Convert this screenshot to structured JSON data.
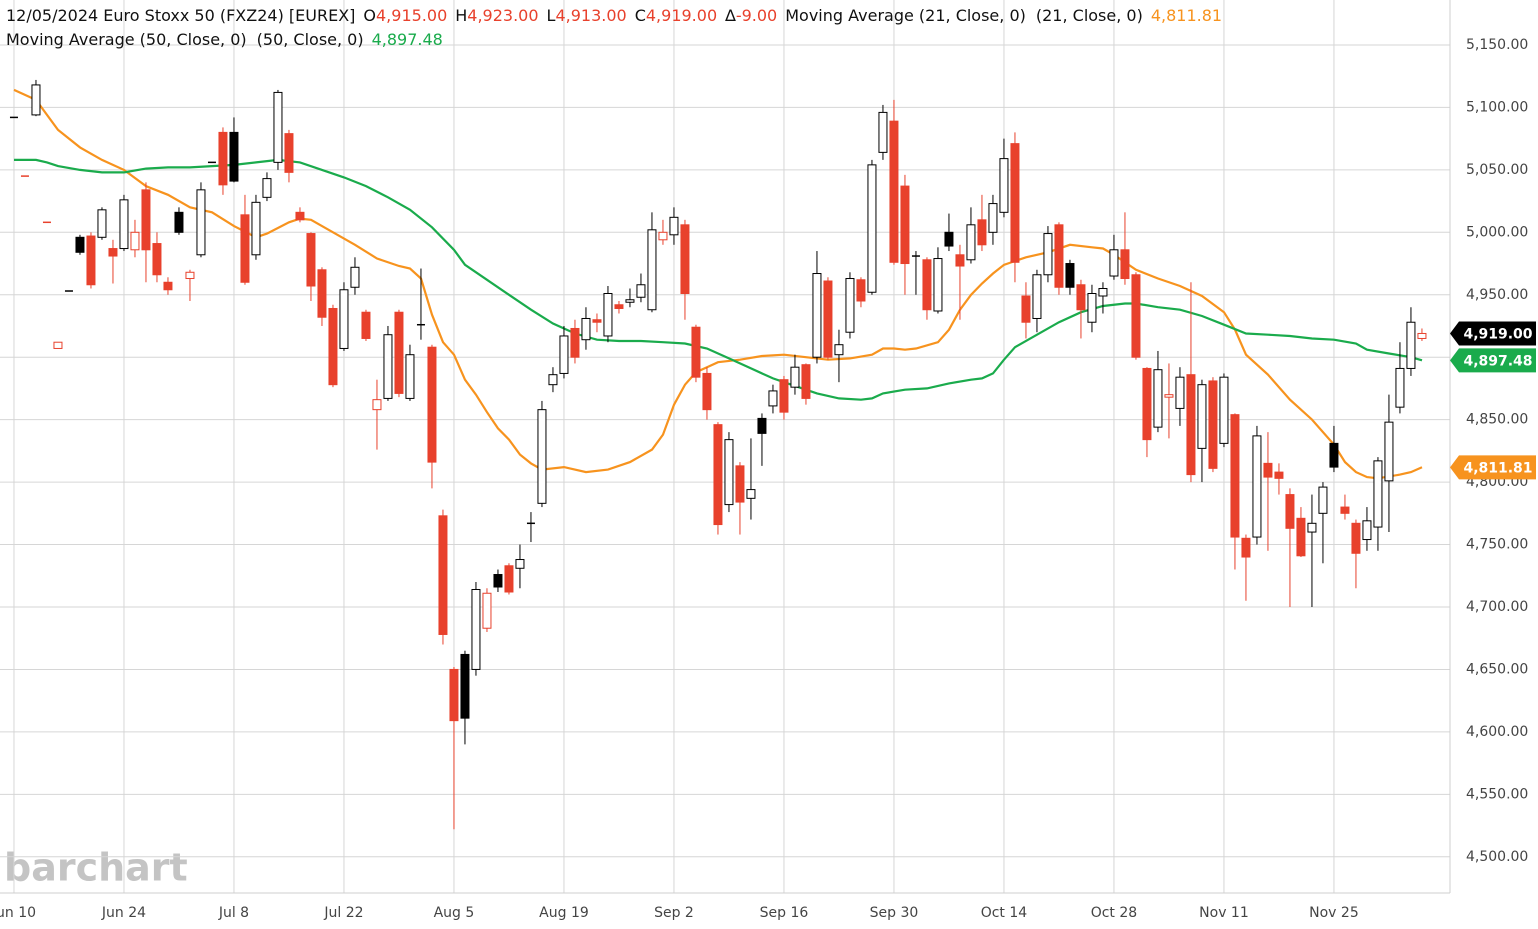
{
  "chart_data": {
    "type": "candlestick",
    "title": "12/05/2024 Euro Stoxx 50 (FXZ24) [EUREX]",
    "quote": [
      {
        "key": "O",
        "text": "4,915.00"
      },
      {
        "key": "H",
        "text": "4,923.00"
      },
      {
        "key": "L",
        "text": "4,913.00"
      },
      {
        "key": "C",
        "text": "4,919.00"
      },
      {
        "key": "∆",
        "text": "-9.00"
      }
    ],
    "watermark": "barchart",
    "up_color": "#000000",
    "down_color": "#e8412c",
    "x": [
      0,
      1,
      2,
      3,
      4,
      5,
      6,
      7,
      8,
      9,
      10,
      11,
      12,
      13,
      14,
      15,
      16,
      17,
      18,
      19,
      20,
      21,
      22,
      23,
      24,
      25,
      26,
      27,
      28,
      29,
      30,
      31,
      32,
      33,
      34,
      35,
      36,
      37,
      38,
      39,
      40,
      41,
      42,
      43,
      44,
      45,
      46,
      47,
      48,
      49,
      50,
      51,
      52,
      53,
      54,
      55,
      56,
      57,
      58,
      59,
      60,
      61,
      62,
      63,
      64,
      65,
      66,
      67,
      68,
      69,
      70,
      71,
      72,
      73,
      74,
      75,
      76,
      77,
      78,
      79,
      80,
      81,
      82,
      83,
      84,
      85,
      86,
      87,
      88,
      89,
      90,
      91,
      92,
      93,
      94,
      95,
      96,
      97,
      98,
      99,
      100,
      101,
      102,
      103,
      104,
      105,
      106,
      107,
      108,
      109,
      110,
      111,
      112,
      113,
      114,
      115,
      116,
      117,
      118,
      119,
      120,
      121,
      122,
      123,
      124,
      125,
      126,
      127,
      128
    ],
    "open": [
      5092,
      5045,
      5094,
      5008,
      4907,
      4953,
      4996,
      4997,
      4996,
      4987,
      4987,
      4986,
      5034,
      4991,
      4960,
      5016,
      4963,
      4982,
      5056,
      5080,
      5080,
      5014,
      4982,
      5028,
      5056,
      5079,
      5016,
      4999,
      4970,
      4939,
      4907,
      4956,
      4936,
      4858,
      4867,
      4936,
      4867,
      4926,
      4908,
      4773,
      4650,
      4662,
      4650,
      4683,
      4726,
      4733,
      4731,
      4767,
      4783,
      4878,
      4887,
      4923,
      4914,
      4930,
      4917,
      4942,
      4944,
      4948,
      4938,
      4994,
      4998,
      5006,
      4924,
      4887,
      4846,
      4782,
      4813,
      4787,
      4851,
      4861,
      4882,
      4876,
      4894,
      4900,
      4961,
      4902,
      4920,
      4962,
      4952,
      5064,
      5089,
      5037,
      4981,
      4978,
      4937,
      5000,
      4982,
      4978,
      5010,
      5000,
      5016,
      5071,
      4949,
      4931,
      4966,
      5006,
      4975,
      4958,
      4928,
      4949,
      4965,
      4986,
      4966,
      4891,
      4844,
      4868,
      4859,
      4886,
      4827,
      4881,
      4831,
      4854,
      4755,
      4756,
      4815,
      4808,
      4790,
      4771,
      4760,
      4775,
      4831,
      4780,
      4767,
      4754,
      4764,
      4801,
      4860,
      4891,
      4915
    ],
    "high": [
      5092,
      5045,
      5122,
      5008,
      4912,
      4953,
      4998,
      5000,
      5020,
      4994,
      5030,
      5010,
      5040,
      5000,
      4964,
      5020,
      4970,
      5040,
      5056,
      5084,
      5092,
      5030,
      5030,
      5048,
      5114,
      5082,
      5020,
      5000,
      4972,
      4942,
      4960,
      4980,
      4938,
      4882,
      4925,
      4938,
      4910,
      4971,
      4910,
      4778,
      4652,
      4665,
      4720,
      4715,
      4730,
      4735,
      4750,
      4776,
      4865,
      4892,
      4925,
      4930,
      4940,
      4935,
      4957,
      4945,
      4955,
      4967,
      5016,
      5010,
      5020,
      5010,
      4926,
      4892,
      4848,
      4840,
      4816,
      4835,
      4855,
      4878,
      4885,
      4902,
      4895,
      4985,
      4964,
      4922,
      4968,
      4964,
      5058,
      5102,
      5106,
      5046,
      4985,
      4980,
      4988,
      5015,
      4990,
      5020,
      5030,
      5030,
      5075,
      5080,
      4960,
      4970,
      5005,
      5008,
      4978,
      4962,
      4958,
      4960,
      4998,
      5016,
      4968,
      4892,
      4905,
      4895,
      4892,
      4960,
      4882,
      4884,
      4887,
      4855,
      4758,
      4845,
      4840,
      4815,
      4795,
      4780,
      4790,
      4800,
      4845,
      4790,
      4770,
      4780,
      4820,
      4870,
      4912,
      4940,
      4923
    ],
    "low": [
      5092,
      5045,
      5093,
      5008,
      4907,
      4953,
      4982,
      4955,
      4994,
      4959,
      4985,
      4980,
      4960,
      4960,
      4950,
      4998,
      4945,
      4980,
      5056,
      5030,
      5040,
      4958,
      4978,
      5025,
      5050,
      5040,
      5008,
      4945,
      4925,
      4876,
      4905,
      4950,
      4913,
      4826,
      4865,
      4868,
      4865,
      4914,
      4795,
      4670,
      4522,
      4590,
      4645,
      4680,
      4712,
      4710,
      4715,
      4752,
      4780,
      4872,
      4883,
      4895,
      4906,
      4920,
      4912,
      4935,
      4940,
      4944,
      4936,
      4990,
      4990,
      4930,
      4880,
      4850,
      4758,
      4776,
      4758,
      4770,
      4813,
      4855,
      4850,
      4870,
      4862,
      4895,
      4898,
      4880,
      4915,
      4940,
      4950,
      5058,
      4974,
      4950,
      4950,
      4930,
      4935,
      4985,
      4930,
      4975,
      4985,
      4990,
      5012,
      4960,
      4915,
      4920,
      4960,
      4950,
      4950,
      4915,
      4920,
      4935,
      4962,
      4958,
      4898,
      4820,
      4840,
      4835,
      4845,
      4800,
      4800,
      4808,
      4828,
      4730,
      4705,
      4750,
      4745,
      4790,
      4700,
      4740,
      4700,
      4735,
      4808,
      4770,
      4715,
      4745,
      4745,
      4760,
      4855,
      4885,
      4913
    ],
    "close": [
      5092,
      5045,
      5118,
      5008,
      4912,
      4953,
      4984,
      4958,
      5018,
      4981,
      5026,
      5000,
      4986,
      4966,
      4954,
      5000,
      4968,
      5034,
      5056,
      5038,
      5041,
      4960,
      5024,
      5043,
      5112,
      5048,
      5010,
      4957,
      4932,
      4878,
      4954,
      4972,
      4915,
      4866,
      4918,
      4871,
      4902,
      4926,
      4816,
      4678,
      4609,
      4611,
      4714,
      4711,
      4716,
      4712,
      4738,
      4767,
      4858,
      4886,
      4917,
      4900,
      4931,
      4928,
      4951,
      4939,
      4946,
      4958,
      5002,
      5000,
      5012,
      4951,
      4884,
      4858,
      4766,
      4834,
      4784,
      4794,
      4839,
      4873,
      4856,
      4892,
      4867,
      4967,
      4900,
      4910,
      4963,
      4945,
      5054,
      5096,
      4976,
      4975,
      4981,
      4938,
      4979,
      4989,
      4973,
      5006,
      4990,
      5023,
      5059,
      4976,
      4928,
      4966,
      4999,
      4956,
      4956,
      4938,
      4951,
      4955,
      4986,
      4963,
      4900,
      4834,
      4890,
      4870,
      4884,
      4806,
      4878,
      4811,
      4884,
      4756,
      4740,
      4837,
      4804,
      4803,
      4763,
      4741,
      4767,
      4796,
      4812,
      4775,
      4743,
      4769,
      4817,
      4848,
      4891,
      4928,
      4919
    ],
    "series": [
      {
        "name": "Moving Average (21, Close, 0)",
        "params": "(21, Close, 0)",
        "value_label": "4,811.81",
        "color": "#f7931e",
        "x": [
          0,
          2,
          4,
          6,
          8,
          10,
          12,
          14,
          16,
          18,
          20,
          22,
          23,
          25,
          26,
          27,
          29,
          31,
          33,
          35,
          36,
          37,
          38,
          39,
          40,
          41,
          42,
          43,
          44,
          45,
          46,
          47,
          48,
          50,
          52,
          54,
          56,
          58,
          59,
          60,
          61,
          62,
          63,
          64,
          66,
          68,
          70,
          72,
          74,
          76,
          78,
          79,
          80,
          81,
          82,
          84,
          85,
          86,
          87,
          88,
          89,
          90,
          92,
          94,
          96,
          98,
          99,
          100,
          102,
          104,
          106,
          108,
          110,
          111,
          112,
          114,
          116,
          118,
          120,
          121,
          122,
          123,
          124,
          126,
          127,
          128
        ],
        "values": [
          5114,
          5106,
          5082,
          5068,
          5058,
          5050,
          5037,
          5030,
          5020,
          5016,
          5005,
          4996,
          4999,
          5008,
          5011,
          5010,
          5000,
          4990,
          4979,
          4973,
          4971,
          4963,
          4934,
          4912,
          4902,
          4882,
          4870,
          4856,
          4843,
          4834,
          4822,
          4815,
          4810,
          4812,
          4808,
          4810,
          4816,
          4826,
          4838,
          4862,
          4878,
          4888,
          4892,
          4896,
          4898,
          4901,
          4902,
          4900,
          4898,
          4899,
          4902,
          4907,
          4907,
          4906,
          4907,
          4912,
          4922,
          4938,
          4950,
          4959,
          4967,
          4974,
          4980,
          4984,
          4990,
          4988,
          4987,
          4982,
          4970,
          4963,
          4957,
          4949,
          4936,
          4922,
          4902,
          4886,
          4866,
          4850,
          4830,
          4816,
          4808,
          4804,
          4803,
          4806,
          4808,
          4811.81
        ]
      },
      {
        "name": "Moving Average (50, Close, 0)",
        "params": "(50, Close, 0)",
        "value_label": "4,897.48",
        "color": "#1aab4c",
        "x": [
          0,
          2,
          3,
          4,
          6,
          8,
          10,
          12,
          14,
          16,
          18,
          20,
          22,
          24,
          26,
          28,
          30,
          32,
          34,
          36,
          38,
          40,
          41,
          43,
          45,
          47,
          49,
          51,
          53,
          55,
          57,
          59,
          61,
          63,
          65,
          67,
          69,
          71,
          73,
          75,
          77,
          78,
          79,
          81,
          83,
          85,
          87,
          88,
          89,
          90,
          91,
          93,
          95,
          97,
          99,
          101,
          102,
          104,
          106,
          108,
          110,
          112,
          114,
          116,
          118,
          120,
          122,
          123,
          125,
          127,
          128
        ],
        "values": [
          5058,
          5058,
          5056,
          5053,
          5050,
          5048,
          5048,
          5051,
          5052,
          5052,
          5053,
          5054,
          5056,
          5058,
          5056,
          5050,
          5044,
          5037,
          5028,
          5018,
          5004,
          4986,
          4974,
          4962,
          4950,
          4938,
          4927,
          4919,
          4914,
          4913,
          4913,
          4912,
          4911,
          4907,
          4899,
          4891,
          4883,
          4877,
          4871,
          4867,
          4866,
          4867,
          4871,
          4874,
          4875,
          4879,
          4882,
          4883,
          4887,
          4898,
          4908,
          4918,
          4928,
          4936,
          4941,
          4943,
          4943,
          4940,
          4938,
          4933,
          4926,
          4919,
          4918,
          4917,
          4915,
          4914,
          4911,
          4906,
          4903,
          4900,
          4897.48
        ]
      }
    ],
    "xlim": [
      -1.27,
      130.55
    ],
    "xticks": [
      {
        "value": 0,
        "label": "Jun 10"
      },
      {
        "value": 10,
        "label": "Jun 24"
      },
      {
        "value": 20,
        "label": "Jul 8"
      },
      {
        "value": 30,
        "label": "Jul 22"
      },
      {
        "value": 40,
        "label": "Aug 5"
      },
      {
        "value": 50,
        "label": "Aug 19"
      },
      {
        "value": 60,
        "label": "Sep 2"
      },
      {
        "value": 70,
        "label": "Sep 16"
      },
      {
        "value": 80,
        "label": "Sep 30"
      },
      {
        "value": 90,
        "label": "Oct 14"
      },
      {
        "value": 100,
        "label": "Oct 28"
      },
      {
        "value": 110,
        "label": "Nov 11"
      },
      {
        "value": 120,
        "label": "Nov 25"
      }
    ],
    "ylim": [
      4471,
      5186
    ],
    "yticks": [
      {
        "value": 4500,
        "label": "4,500.00"
      },
      {
        "value": 4550,
        "label": "4,550.00"
      },
      {
        "value": 4600,
        "label": "4,600.00"
      },
      {
        "value": 4650,
        "label": "4,650.00"
      },
      {
        "value": 4700,
        "label": "4,700.00"
      },
      {
        "value": 4750,
        "label": "4,750.00"
      },
      {
        "value": 4800,
        "label": "4,800.00"
      },
      {
        "value": 4850,
        "label": "4,850.00"
      },
      {
        "value": 4900,
        "label": "4,900.00"
      },
      {
        "value": 4950,
        "label": "4,950.00"
      },
      {
        "value": 5000,
        "label": "5,000.00"
      },
      {
        "value": 5050,
        "label": "5,050.00"
      },
      {
        "value": 5100,
        "label": "5,100.00"
      },
      {
        "value": 5150,
        "label": "5,150.00"
      }
    ],
    "grid": true
  }
}
